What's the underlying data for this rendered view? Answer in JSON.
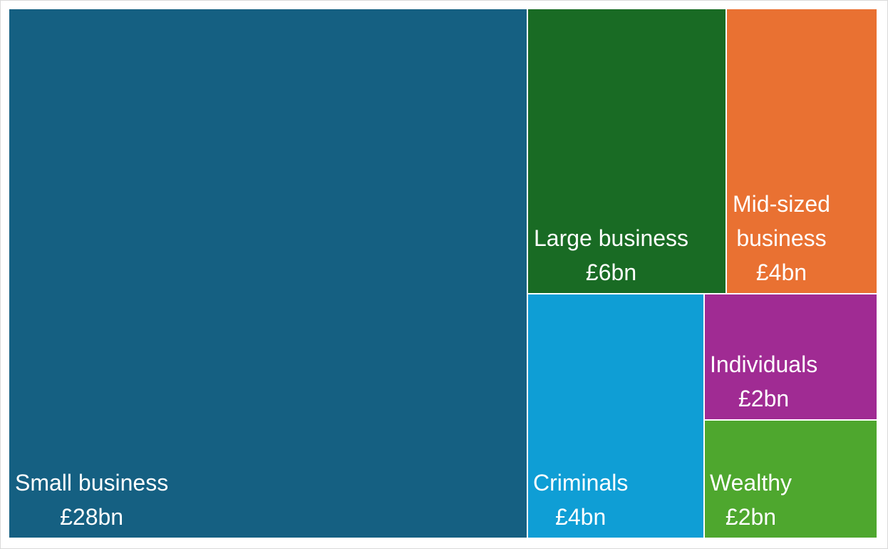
{
  "chart_data": {
    "type": "treemap",
    "title": "",
    "unit": "£bn",
    "items": [
      {
        "key": "small",
        "name": "Small business",
        "value": 28,
        "value_label": "£28bn",
        "color": "#156082"
      },
      {
        "key": "large",
        "name": "Large business",
        "value": 6,
        "value_label": "£6bn",
        "color": "#196B24"
      },
      {
        "key": "mid",
        "name": "Mid-sized business",
        "name_lines": [
          "Mid-sized",
          "business"
        ],
        "value": 4,
        "value_label": "£4bn",
        "color": "#E97132"
      },
      {
        "key": "criminals",
        "name": "Criminals",
        "value": 4,
        "value_label": "£4bn",
        "color": "#0F9ED5"
      },
      {
        "key": "individuals",
        "name": "Individuals",
        "value": 2,
        "value_label": "£2bn",
        "color": "#A02B93"
      },
      {
        "key": "wealthy",
        "name": "Wealthy",
        "value": 2,
        "value_label": "£2bn",
        "color": "#4EA72E"
      }
    ]
  }
}
